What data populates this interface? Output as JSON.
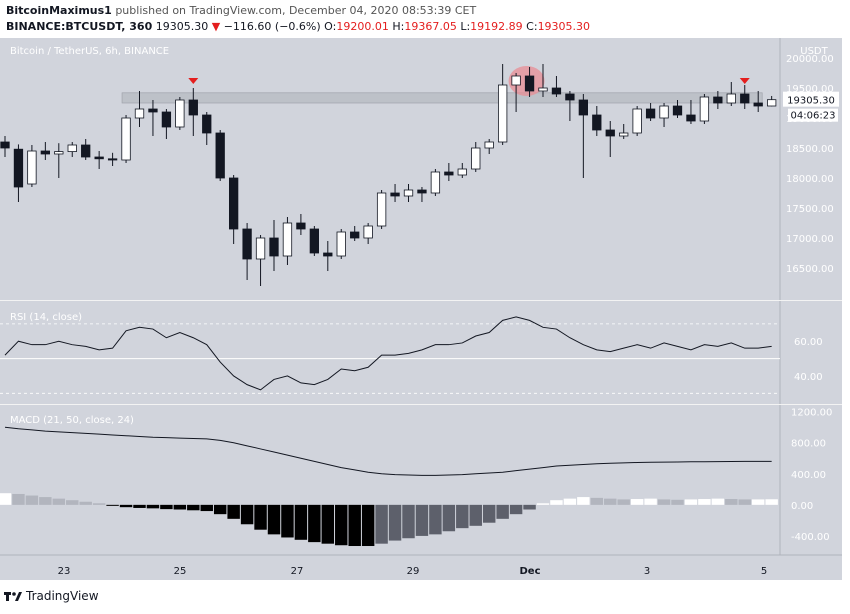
{
  "header": {
    "author": "BitcoinMaximus1",
    "published": "published on TradingView.com, December 04, 2020 08:53:39 CET",
    "symbol": "BINANCE:BTCUSDT, 360",
    "last": "19305.30",
    "change": "−116.60 (−0.6%)",
    "o_label": "O:",
    "o": "19200.01",
    "h_label": "H:",
    "h": "19367.05",
    "l_label": "L:",
    "l": "19192.89",
    "c_label": "C:",
    "c": "19305.30"
  },
  "pane_titles": {
    "price": "Bitcoin / TetherUS, 6h, BINANCE",
    "rsi": "RSI (14, close)",
    "macd": "MACD (21, 50, close, 24)"
  },
  "footer": {
    "brand": "TradingView"
  },
  "colors": {
    "background": "#d1d4dc",
    "bull_body": "#ffffff",
    "bear_body": "#131722",
    "marker": "#e41e1e",
    "zone": "#b8bbc3",
    "highlight": "#e88e95"
  },
  "chart_data": [
    {
      "type": "candlestick",
      "title": "Bitcoin / TetherUS, 6h, BINANCE",
      "y_unit": "USDT",
      "ylim": [
        16000,
        20300
      ],
      "yticks": [
        "16500.00",
        "17000.00",
        "17500.00",
        "18000.00",
        "18500.00",
        "19000.00",
        "19500.00",
        "20000.00"
      ],
      "xticks": [
        "23",
        "25",
        "27",
        "29",
        "Dec",
        "3",
        "5"
      ],
      "last_price_label": "19305.30",
      "countdown_label": "04:06:23",
      "resistance_zone": [
        19250,
        19420
      ],
      "candles": [
        {
          "o": 18600,
          "h": 18700,
          "l": 18350,
          "c": 18500
        },
        {
          "o": 18480,
          "h": 18560,
          "l": 17600,
          "c": 17850
        },
        {
          "o": 17900,
          "h": 18550,
          "l": 17850,
          "c": 18450
        },
        {
          "o": 18450,
          "h": 18600,
          "l": 18300,
          "c": 18400
        },
        {
          "o": 18400,
          "h": 18580,
          "l": 18000,
          "c": 18440
        },
        {
          "o": 18440,
          "h": 18600,
          "l": 18350,
          "c": 18550
        },
        {
          "o": 18550,
          "h": 18650,
          "l": 18300,
          "c": 18350
        },
        {
          "o": 18350,
          "h": 18450,
          "l": 18150,
          "c": 18320
        },
        {
          "o": 18320,
          "h": 18420,
          "l": 18200,
          "c": 18300
        },
        {
          "o": 18300,
          "h": 19050,
          "l": 18250,
          "c": 19000
        },
        {
          "o": 19000,
          "h": 19450,
          "l": 18850,
          "c": 19150
        },
        {
          "o": 19150,
          "h": 19300,
          "l": 18700,
          "c": 19100
        },
        {
          "o": 19100,
          "h": 19150,
          "l": 18650,
          "c": 18850
        },
        {
          "o": 18850,
          "h": 19350,
          "l": 18800,
          "c": 19300
        },
        {
          "o": 19300,
          "h": 19500,
          "l": 18700,
          "c": 19050
        },
        {
          "o": 19050,
          "h": 19100,
          "l": 18550,
          "c": 18750
        },
        {
          "o": 18750,
          "h": 18800,
          "l": 17950,
          "c": 18000
        },
        {
          "o": 18000,
          "h": 18050,
          "l": 16900,
          "c": 17150
        },
        {
          "o": 17150,
          "h": 17250,
          "l": 16300,
          "c": 16650
        },
        {
          "o": 16650,
          "h": 17050,
          "l": 16200,
          "c": 17000
        },
        {
          "o": 17000,
          "h": 17300,
          "l": 16450,
          "c": 16700
        },
        {
          "o": 16700,
          "h": 17350,
          "l": 16550,
          "c": 17250
        },
        {
          "o": 17250,
          "h": 17400,
          "l": 17050,
          "c": 17150
        },
        {
          "o": 17150,
          "h": 17200,
          "l": 16700,
          "c": 16750
        },
        {
          "o": 16750,
          "h": 16950,
          "l": 16450,
          "c": 16700
        },
        {
          "o": 16700,
          "h": 17150,
          "l": 16650,
          "c": 17100
        },
        {
          "o": 17100,
          "h": 17200,
          "l": 16950,
          "c": 17000
        },
        {
          "o": 17000,
          "h": 17250,
          "l": 16900,
          "c": 17200
        },
        {
          "o": 17200,
          "h": 17800,
          "l": 17150,
          "c": 17750
        },
        {
          "o": 17750,
          "h": 17900,
          "l": 17600,
          "c": 17700
        },
        {
          "o": 17700,
          "h": 17900,
          "l": 17600,
          "c": 17800
        },
        {
          "o": 17800,
          "h": 17850,
          "l": 17600,
          "c": 17750
        },
        {
          "o": 17750,
          "h": 18150,
          "l": 17700,
          "c": 18100
        },
        {
          "o": 18100,
          "h": 18250,
          "l": 17950,
          "c": 18050
        },
        {
          "o": 18050,
          "h": 18250,
          "l": 18000,
          "c": 18150
        },
        {
          "o": 18150,
          "h": 18600,
          "l": 18100,
          "c": 18500
        },
        {
          "o": 18500,
          "h": 18650,
          "l": 18400,
          "c": 18600
        },
        {
          "o": 18600,
          "h": 19900,
          "l": 18550,
          "c": 19550
        },
        {
          "o": 19550,
          "h": 19750,
          "l": 19100,
          "c": 19700
        },
        {
          "o": 19700,
          "h": 19850,
          "l": 19350,
          "c": 19450
        },
        {
          "o": 19450,
          "h": 19900,
          "l": 19350,
          "c": 19500
        },
        {
          "o": 19500,
          "h": 19700,
          "l": 19350,
          "c": 19400
        },
        {
          "o": 19400,
          "h": 19450,
          "l": 18950,
          "c": 19300
        },
        {
          "o": 19300,
          "h": 19400,
          "l": 18000,
          "c": 19050
        },
        {
          "o": 19050,
          "h": 19200,
          "l": 18700,
          "c": 18800
        },
        {
          "o": 18800,
          "h": 18950,
          "l": 18350,
          "c": 18700
        },
        {
          "o": 18700,
          "h": 18900,
          "l": 18650,
          "c": 18750
        },
        {
          "o": 18750,
          "h": 19200,
          "l": 18700,
          "c": 19150
        },
        {
          "o": 19150,
          "h": 19250,
          "l": 18950,
          "c": 19000
        },
        {
          "o": 19000,
          "h": 19250,
          "l": 18850,
          "c": 19200
        },
        {
          "o": 19200,
          "h": 19300,
          "l": 19000,
          "c": 19050
        },
        {
          "o": 19050,
          "h": 19300,
          "l": 18900,
          "c": 18950
        },
        {
          "o": 18950,
          "h": 19400,
          "l": 18900,
          "c": 19350
        },
        {
          "o": 19350,
          "h": 19450,
          "l": 19150,
          "c": 19250
        },
        {
          "o": 19250,
          "h": 19600,
          "l": 19200,
          "c": 19400
        },
        {
          "o": 19400,
          "h": 19550,
          "l": 19150,
          "c": 19250
        },
        {
          "o": 19250,
          "h": 19450,
          "l": 19100,
          "c": 19200
        },
        {
          "o": 19200,
          "h": 19367.05,
          "l": 19192.89,
          "c": 19305.3
        }
      ],
      "markers_at_candle": [
        14,
        55
      ],
      "highlight_at_candle": 39
    },
    {
      "type": "line",
      "title": "RSI (14, close)",
      "yticks": [
        "40.00",
        "60.00"
      ],
      "ylim": [
        25,
        82
      ],
      "bands": [
        30,
        50,
        70
      ],
      "values": [
        52,
        60,
        58,
        58,
        60,
        58,
        57,
        55,
        56,
        66,
        68,
        67,
        62,
        65,
        62,
        58,
        48,
        40,
        35,
        32,
        38,
        40,
        36,
        35,
        38,
        44,
        43,
        45,
        52,
        52,
        53,
        55,
        58,
        58,
        59,
        63,
        65,
        72,
        74,
        72,
        68,
        67,
        62,
        58,
        55,
        54,
        56,
        58,
        56,
        59,
        57,
        55,
        58,
        57,
        59,
        56,
        56,
        57
      ]
    },
    {
      "type": "combo",
      "title": "MACD (21, 50, close, 24)",
      "yticks": [
        "-400.00",
        "0.00",
        "400.00",
        "800.00",
        "1200.00"
      ],
      "ylim": [
        -620,
        1260
      ],
      "macd_line": [
        1000,
        980,
        965,
        950,
        940,
        930,
        920,
        910,
        900,
        890,
        880,
        870,
        865,
        860,
        855,
        850,
        830,
        800,
        760,
        720,
        680,
        640,
        600,
        560,
        520,
        480,
        450,
        420,
        400,
        390,
        385,
        380,
        380,
        385,
        390,
        400,
        410,
        420,
        440,
        460,
        480,
        500,
        510,
        520,
        530,
        535,
        540,
        545,
        548,
        550,
        552,
        555,
        555,
        556,
        558,
        560,
        560,
        560
      ],
      "histogram": [
        150,
        140,
        120,
        100,
        80,
        60,
        40,
        20,
        -10,
        -30,
        -40,
        -45,
        -55,
        -60,
        -70,
        -80,
        -120,
        -180,
        -250,
        -320,
        -380,
        -420,
        -450,
        -480,
        -500,
        -520,
        -530,
        -530,
        -500,
        -460,
        -430,
        -400,
        -380,
        -340,
        -300,
        -270,
        -230,
        -180,
        -120,
        -60,
        20,
        60,
        80,
        100,
        90,
        80,
        70,
        75,
        80,
        70,
        65,
        70,
        75,
        80,
        75,
        70,
        70,
        72
      ]
    }
  ]
}
